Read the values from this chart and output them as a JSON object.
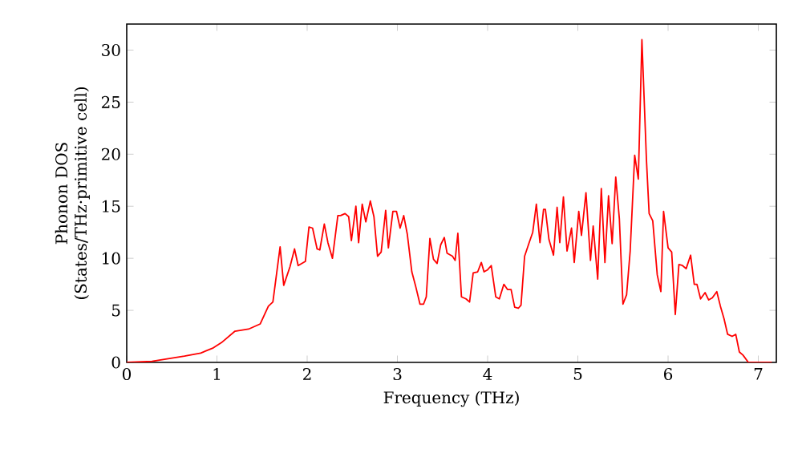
{
  "chart_data": {
    "type": "line",
    "xlabel": "Frequency (THz)",
    "ylabel": "Phonon DOS (States/THz·primitive cell)",
    "xlim": [
      0,
      7.2
    ],
    "ylim": [
      0,
      32.5
    ],
    "xticks": [
      0,
      1,
      2,
      3,
      4,
      5,
      6,
      7
    ],
    "yticks": [
      0,
      5,
      10,
      15,
      20,
      25,
      30
    ],
    "grid": false,
    "series": [
      {
        "color": "#ff0000",
        "x": [
          0,
          0.28,
          0.64,
          0.82,
          0.96,
          1.05,
          1.2,
          1.35,
          1.48,
          1.57,
          1.62,
          1.7,
          1.74,
          1.81,
          1.86,
          1.9,
          1.98,
          2.02,
          2.06,
          2.11,
          2.14,
          2.19,
          2.23,
          2.28,
          2.34,
          2.37,
          2.42,
          2.46,
          2.49,
          2.54,
          2.57,
          2.61,
          2.65,
          2.7,
          2.74,
          2.78,
          2.82,
          2.87,
          2.9,
          2.95,
          2.99,
          3.03,
          3.07,
          3.11,
          3.16,
          3.2,
          3.25,
          3.29,
          3.32,
          3.36,
          3.4,
          3.44,
          3.48,
          3.52,
          3.55,
          3.61,
          3.64,
          3.67,
          3.71,
          3.76,
          3.8,
          3.84,
          3.89,
          3.93,
          3.96,
          4.0,
          4.04,
          4.09,
          4.13,
          4.18,
          4.22,
          4.26,
          4.3,
          4.34,
          4.37,
          4.41,
          4.46,
          4.5,
          4.54,
          4.58,
          4.62,
          4.64,
          4.68,
          4.73,
          4.77,
          4.8,
          4.84,
          4.88,
          4.93,
          4.96,
          5.01,
          5.04,
          5.09,
          5.14,
          5.17,
          5.22,
          5.26,
          5.3,
          5.34,
          5.38,
          5.42,
          5.46,
          5.5,
          5.54,
          5.58,
          5.63,
          5.67,
          5.71,
          5.76,
          5.79,
          5.83,
          5.88,
          5.92,
          5.95,
          6.0,
          6.04,
          6.08,
          6.12,
          6.16,
          6.2,
          6.25,
          6.29,
          6.32,
          6.36,
          6.41,
          6.45,
          6.49,
          6.54,
          6.58,
          6.62,
          6.66,
          6.71,
          6.75,
          6.79,
          6.83,
          6.89,
          7.15
        ],
        "values": [
          0,
          0.1,
          0.6,
          0.9,
          1.4,
          1.9,
          3.0,
          3.2,
          3.7,
          5.4,
          5.8,
          11.1,
          7.4,
          9.2,
          10.9,
          9.3,
          9.7,
          13.0,
          12.9,
          10.9,
          10.8,
          13.3,
          11.5,
          10.0,
          14.1,
          14.1,
          14.3,
          14.0,
          11.7,
          15.0,
          11.5,
          15.2,
          13.5,
          15.5,
          14.0,
          10.2,
          10.6,
          14.6,
          11.0,
          14.5,
          14.5,
          12.9,
          14.1,
          12.3,
          8.7,
          7.4,
          5.6,
          5.6,
          6.3,
          11.9,
          9.9,
          9.5,
          11.3,
          12.0,
          10.5,
          10.2,
          9.8,
          12.4,
          6.3,
          6.1,
          5.8,
          8.6,
          8.7,
          9.6,
          8.7,
          8.9,
          9.3,
          6.3,
          6.1,
          7.5,
          7.0,
          7.0,
          5.3,
          5.2,
          5.5,
          10.2,
          11.5,
          12.5,
          15.2,
          11.5,
          14.7,
          14.7,
          11.8,
          10.3,
          14.9,
          11.5,
          15.9,
          10.7,
          12.9,
          9.6,
          14.5,
          12.2,
          16.3,
          9.8,
          13.1,
          8.0,
          16.7,
          9.6,
          16.0,
          11.4,
          17.8,
          13.8,
          5.6,
          6.5,
          10.7,
          19.9,
          17.6,
          31.0,
          19.5,
          14.3,
          13.6,
          8.4,
          6.8,
          14.5,
          11.0,
          10.6,
          4.6,
          9.4,
          9.3,
          9.0,
          10.3,
          7.5,
          7.5,
          6.1,
          6.7,
          6.0,
          6.2,
          6.8,
          5.4,
          4.2,
          2.7,
          2.5,
          2.7,
          1.0,
          0.7,
          0,
          0
        ]
      }
    ]
  }
}
